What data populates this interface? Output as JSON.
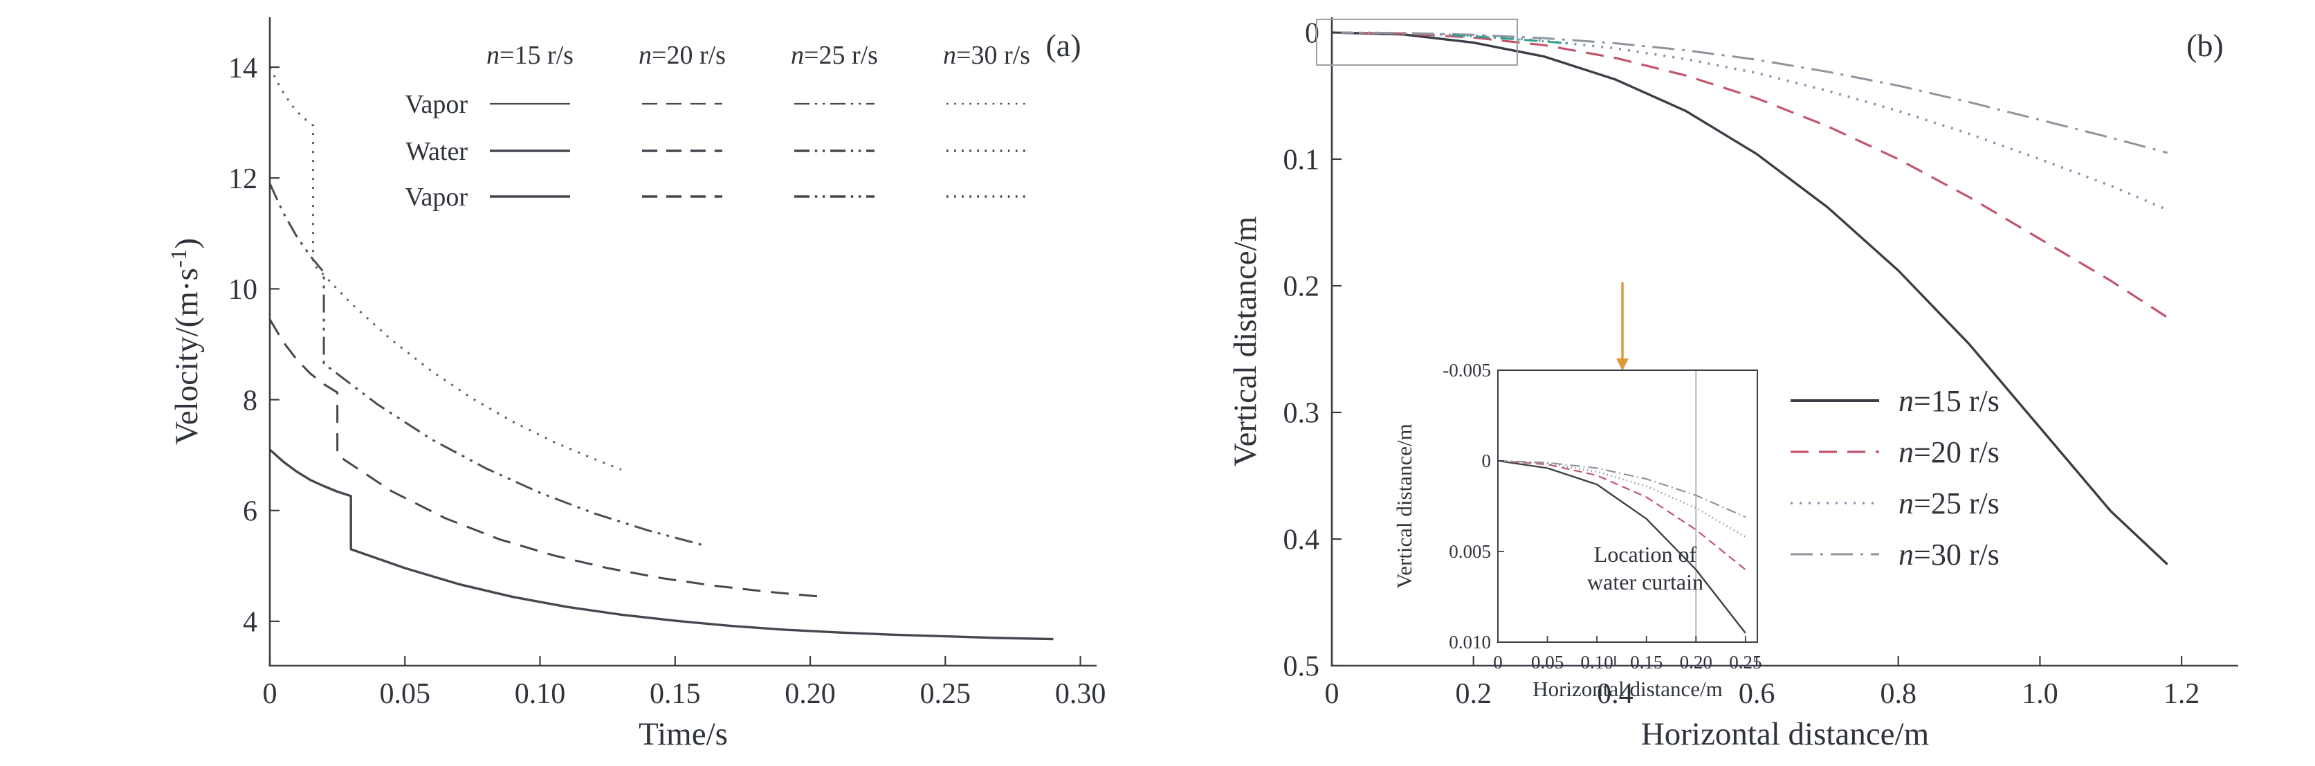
{
  "figure": {
    "background": "#ffffff",
    "text_color": "#2f343c",
    "axis_color": "#3a3f47"
  },
  "chart_data": [
    {
      "id": "panel-a",
      "type": "line",
      "panel_label": "(a)",
      "xlabel": "Time/s",
      "ylabel": "Velocity/(m·s⁻¹)",
      "ylabel_parts": {
        "pre": "Velocity/(m·s",
        "sup": "-1",
        "post": ")"
      },
      "xlim": [
        0,
        0.306
      ],
      "ylim": [
        3.2,
        14.9
      ],
      "grid": false,
      "xticks": {
        "values": [
          0,
          0.05,
          0.1,
          0.15,
          0.2,
          0.25,
          0.3
        ],
        "labels": [
          "0",
          "0.05",
          "0.10",
          "0.15",
          "0.20",
          "0.25",
          "0.30"
        ]
      },
      "yticks": {
        "values": [
          4,
          6,
          8,
          10,
          12,
          14
        ],
        "labels": [
          "4",
          "6",
          "8",
          "10",
          "12",
          "14"
        ]
      },
      "legend": {
        "position": "top-inside",
        "color": "#44484f",
        "columns": [
          {
            "label": "n=15 r/s",
            "style": "solid"
          },
          {
            "label": "n=20 r/s",
            "style": "dashed"
          },
          {
            "label": "n=25 r/s",
            "style": "dashdotdot"
          },
          {
            "label": "n=30 r/s",
            "style": "dotted"
          }
        ],
        "rows": [
          {
            "label": "Vapor",
            "width": 2.2
          },
          {
            "label": "Water",
            "width": 3.4
          },
          {
            "label": "Vapor",
            "width": 3.4
          }
        ]
      },
      "series": [
        {
          "name": "n=15 r/s",
          "style": "solid",
          "color": "#44484f",
          "width": 3.4,
          "points": [
            [
              0,
              7.1
            ],
            [
              0.005,
              6.88
            ],
            [
              0.01,
              6.7
            ],
            [
              0.015,
              6.55
            ],
            [
              0.02,
              6.44
            ],
            [
              0.025,
              6.34
            ],
            [
              0.03,
              6.26
            ],
            [
              0.03,
              5.3
            ],
            [
              0.05,
              4.96
            ],
            [
              0.07,
              4.67
            ],
            [
              0.09,
              4.44
            ],
            [
              0.11,
              4.26
            ],
            [
              0.13,
              4.12
            ],
            [
              0.15,
              4.01
            ],
            [
              0.17,
              3.92
            ],
            [
              0.19,
              3.85
            ],
            [
              0.21,
              3.8
            ],
            [
              0.23,
              3.76
            ],
            [
              0.25,
              3.73
            ],
            [
              0.27,
              3.7
            ],
            [
              0.29,
              3.68
            ]
          ]
        },
        {
          "name": "n=20 r/s",
          "style": "dashed",
          "color": "#44484f",
          "width": 3,
          "points": [
            [
              0,
              9.45
            ],
            [
              0.005,
              9.04
            ],
            [
              0.01,
              8.72
            ],
            [
              0.015,
              8.47
            ],
            [
              0.02,
              8.28
            ],
            [
              0.025,
              8.13
            ],
            [
              0.025,
              7.0
            ],
            [
              0.045,
              6.35
            ],
            [
              0.065,
              5.86
            ],
            [
              0.085,
              5.48
            ],
            [
              0.105,
              5.19
            ],
            [
              0.125,
              4.96
            ],
            [
              0.145,
              4.78
            ],
            [
              0.165,
              4.64
            ],
            [
              0.185,
              4.53
            ],
            [
              0.205,
              4.44
            ]
          ]
        },
        {
          "name": "n=25 r/s",
          "style": "dashdotdot",
          "color": "#4a4e55",
          "width": 3,
          "points": [
            [
              0,
              11.9
            ],
            [
              0.005,
              11.37
            ],
            [
              0.01,
              10.94
            ],
            [
              0.015,
              10.59
            ],
            [
              0.02,
              10.3
            ],
            [
              0.02,
              8.65
            ],
            [
              0.04,
              7.91
            ],
            [
              0.06,
              7.28
            ],
            [
              0.08,
              6.76
            ],
            [
              0.1,
              6.32
            ],
            [
              0.12,
              5.95
            ],
            [
              0.14,
              5.64
            ],
            [
              0.16,
              5.38
            ]
          ]
        },
        {
          "name": "n=30 r/s",
          "style": "dotted",
          "color": "#5c6068",
          "width": 3,
          "points": [
            [
              0,
              14.0
            ],
            [
              0.004,
              13.62
            ],
            [
              0.008,
              13.32
            ],
            [
              0.012,
              13.1
            ],
            [
              0.016,
              12.95
            ],
            [
              0.016,
              10.45
            ],
            [
              0.03,
              9.74
            ],
            [
              0.045,
              9.08
            ],
            [
              0.06,
              8.51
            ],
            [
              0.075,
              8.02
            ],
            [
              0.09,
              7.6
            ],
            [
              0.105,
              7.24
            ],
            [
              0.12,
              6.93
            ],
            [
              0.13,
              6.74
            ]
          ]
        }
      ]
    },
    {
      "id": "panel-b",
      "type": "line",
      "panel_label": "(b)",
      "xlabel": "Horizontal distance/m",
      "ylabel": "Vertical distance/m",
      "xlim": [
        0,
        1.28
      ],
      "ylim": [
        0.5,
        -0.012
      ],
      "y_axis_inverted": true,
      "grid": false,
      "xticks": {
        "values": [
          0,
          0.2,
          0.4,
          0.6,
          0.8,
          1.0,
          1.2
        ],
        "labels": [
          "0",
          "0.2",
          "0.4",
          "0.6",
          "0.8",
          "1.0",
          "1.2"
        ]
      },
      "yticks": {
        "values": [
          0,
          0.1,
          0.2,
          0.3,
          0.4,
          0.5
        ],
        "labels": [
          "0",
          "0.1",
          "0.2",
          "0.3",
          "0.4",
          "0.5"
        ]
      },
      "series": [
        {
          "name": "n=15 r/s",
          "style": "solid",
          "color": "#3a3e45",
          "width": 3.4,
          "points": [
            [
              0,
              0
            ],
            [
              0.1,
              0.0015
            ],
            [
              0.2,
              0.008
            ],
            [
              0.3,
              0.019
            ],
            [
              0.4,
              0.037
            ],
            [
              0.5,
              0.062
            ],
            [
              0.6,
              0.096
            ],
            [
              0.7,
              0.138
            ],
            [
              0.8,
              0.188
            ],
            [
              0.9,
              0.246
            ],
            [
              1.0,
              0.312
            ],
            [
              1.1,
              0.378
            ],
            [
              1.18,
              0.42
            ]
          ]
        },
        {
          "name": "n=20 r/s",
          "style": "dashed",
          "color": "#c2556b",
          "width": 3.2,
          "points": [
            [
              0,
              0
            ],
            [
              0.1,
              0.0008
            ],
            [
              0.2,
              0.004
            ],
            [
              0.3,
              0.01
            ],
            [
              0.4,
              0.02
            ],
            [
              0.5,
              0.034
            ],
            [
              0.6,
              0.052
            ],
            [
              0.7,
              0.074
            ],
            [
              0.8,
              0.1
            ],
            [
              0.9,
              0.13
            ],
            [
              1.0,
              0.163
            ],
            [
              1.1,
              0.196
            ],
            [
              1.18,
              0.225
            ]
          ]
        },
        {
          "name": "n=25 r/s",
          "style": "dotted",
          "color": "#8a92ad",
          "width": 3.6,
          "points": [
            [
              0,
              0
            ],
            [
              0.1,
              0.0005
            ],
            [
              0.2,
              0.0025
            ],
            [
              0.3,
              0.0065
            ],
            [
              0.4,
              0.0125
            ],
            [
              0.5,
              0.021
            ],
            [
              0.6,
              0.032
            ],
            [
              0.7,
              0.046
            ],
            [
              0.8,
              0.062
            ],
            [
              0.9,
              0.08
            ],
            [
              1.0,
              0.1
            ],
            [
              1.1,
              0.121
            ],
            [
              1.18,
              0.14
            ]
          ]
        },
        {
          "name": "n=30 r/s",
          "style": "dashdot",
          "color": "#8d949c",
          "width": 3,
          "points": [
            [
              0,
              0
            ],
            [
              0.1,
              0.0004
            ],
            [
              0.2,
              0.0018
            ],
            [
              0.3,
              0.0045
            ],
            [
              0.4,
              0.0085
            ],
            [
              0.5,
              0.014
            ],
            [
              0.6,
              0.0215
            ],
            [
              0.7,
              0.031
            ],
            [
              0.8,
              0.042
            ],
            [
              0.9,
              0.055
            ],
            [
              1.0,
              0.069
            ],
            [
              1.1,
              0.083
            ],
            [
              1.18,
              0.095
            ]
          ]
        }
      ],
      "extra_segments": [
        {
          "name": "teal-highlight-segment",
          "style": "dashdot",
          "color": "#30a093",
          "width": 3,
          "points": [
            [
              0.17,
              0.002
            ],
            [
              0.24,
              0.0045
            ],
            [
              0.3,
              0.007
            ],
            [
              0.34,
              0.009
            ]
          ]
        }
      ],
      "legend": {
        "position": "center-right",
        "items": [
          {
            "label": "n=15 r/s",
            "style": "solid",
            "color": "#3a3e45",
            "width": 4
          },
          {
            "label": "n=20 r/s",
            "style": "dashed",
            "color": "#c2556b",
            "width": 3.2
          },
          {
            "label": "n=25 r/s",
            "style": "dotted",
            "color": "#8a92ad",
            "width": 3.6
          },
          {
            "label": "n=30 r/s",
            "style": "dashdot",
            "color": "#8d949c",
            "width": 3
          }
        ]
      },
      "annotations": {
        "zoom_box_color": "#9aa0a6",
        "zoom_region": {
          "x": [
            0,
            0.25
          ],
          "y": [
            -0.005,
            0.01
          ]
        },
        "arrow_color": "#de9b3c"
      },
      "inset": {
        "xlabel": "Horizontal distance/m",
        "ylabel": "Vertical distance/m",
        "xlim": [
          0,
          0.262
        ],
        "ylim": [
          0.01,
          -0.005
        ],
        "xticks": {
          "values": [
            0,
            0.05,
            0.1,
            0.15,
            0.2,
            0.25
          ],
          "labels": [
            "0",
            "0.05",
            "0.10",
            "0.15",
            "0.20",
            "0.25"
          ]
        },
        "yticks": {
          "values": [
            -0.005,
            0,
            0.005,
            0.01
          ],
          "labels": [
            "-0.005",
            "0",
            "0.005",
            "0.010"
          ]
        },
        "marker_line_x": 0.2,
        "marker_line_color": "#b3b7bd",
        "note_lines": [
          "Location of",
          "water curtain"
        ],
        "series": [
          {
            "name": "n=15 r/s",
            "style": "solid",
            "color": "#3a3e45",
            "width": 2.4,
            "points": [
              [
                0,
                0
              ],
              [
                0.05,
                0.0004
              ],
              [
                0.1,
                0.0013
              ],
              [
                0.15,
                0.0032
              ],
              [
                0.2,
                0.006
              ],
              [
                0.25,
                0.0095
              ]
            ]
          },
          {
            "name": "n=20 r/s",
            "style": "dashed",
            "color": "#c2556b",
            "width": 2.2,
            "points": [
              [
                0,
                0
              ],
              [
                0.05,
                0.0002
              ],
              [
                0.1,
                0.0008
              ],
              [
                0.15,
                0.002
              ],
              [
                0.2,
                0.0038
              ],
              [
                0.25,
                0.006
              ]
            ]
          },
          {
            "name": "n=25 r/s",
            "style": "dotted",
            "color": "#8a92ad",
            "width": 2.6,
            "points": [
              [
                0,
                0
              ],
              [
                0.05,
                0.00015
              ],
              [
                0.1,
                0.0006
              ],
              [
                0.15,
                0.0014
              ],
              [
                0.2,
                0.0026
              ],
              [
                0.25,
                0.0042
              ]
            ]
          },
          {
            "name": "n=30 r/s",
            "style": "dashdot",
            "color": "#8d949c",
            "width": 2.2,
            "points": [
              [
                0,
                0
              ],
              [
                0.05,
                0.0001
              ],
              [
                0.1,
                0.0004
              ],
              [
                0.15,
                0.001
              ],
              [
                0.2,
                0.0019
              ],
              [
                0.25,
                0.0031
              ]
            ]
          }
        ]
      }
    }
  ]
}
